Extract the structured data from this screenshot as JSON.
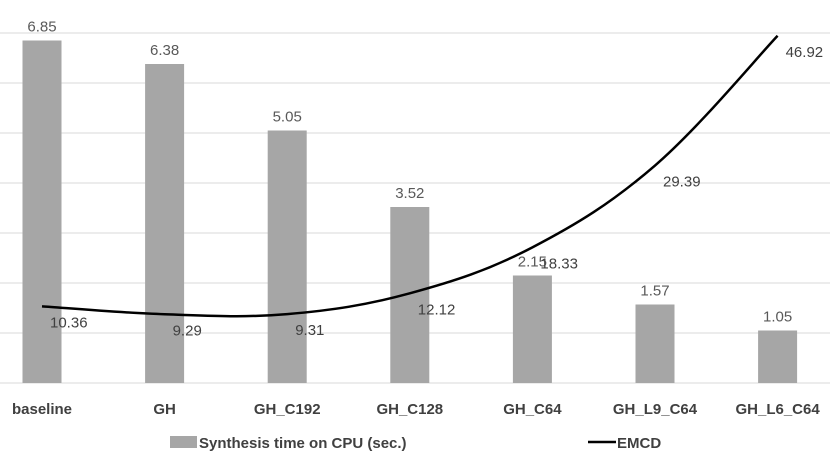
{
  "chart_data": {
    "type": "bar+line",
    "title": "",
    "xlabel": "",
    "ylabel": "",
    "grid": true,
    "legend_position": "bottom",
    "categories": [
      "baseline",
      "GH",
      "GH_C192",
      "GH_C128",
      "GH_C64",
      "GH_L9_C64",
      "GH_L6_C64"
    ],
    "series": [
      {
        "name": "Synthesis time on CPU (sec.)",
        "type": "bar",
        "color": "#a6a6a6",
        "axis": "primary",
        "ylim": [
          0,
          7
        ],
        "values": [
          6.85,
          6.38,
          5.05,
          3.52,
          2.15,
          1.57,
          1.05
        ],
        "labels": [
          "6.85",
          "6.38",
          "5.05",
          "3.52",
          "2.15",
          "1.57",
          "1.05"
        ]
      },
      {
        "name": "EMCD",
        "type": "line",
        "color": "#000000",
        "axis": "secondary",
        "ylim": [
          0,
          50
        ],
        "values": [
          10.36,
          9.29,
          9.31,
          12.12,
          18.33,
          29.39,
          46.92
        ],
        "labels": [
          "10.36",
          "9.29",
          "9.31",
          "12.12",
          "18.33",
          "29.39",
          "46.92"
        ]
      }
    ]
  }
}
